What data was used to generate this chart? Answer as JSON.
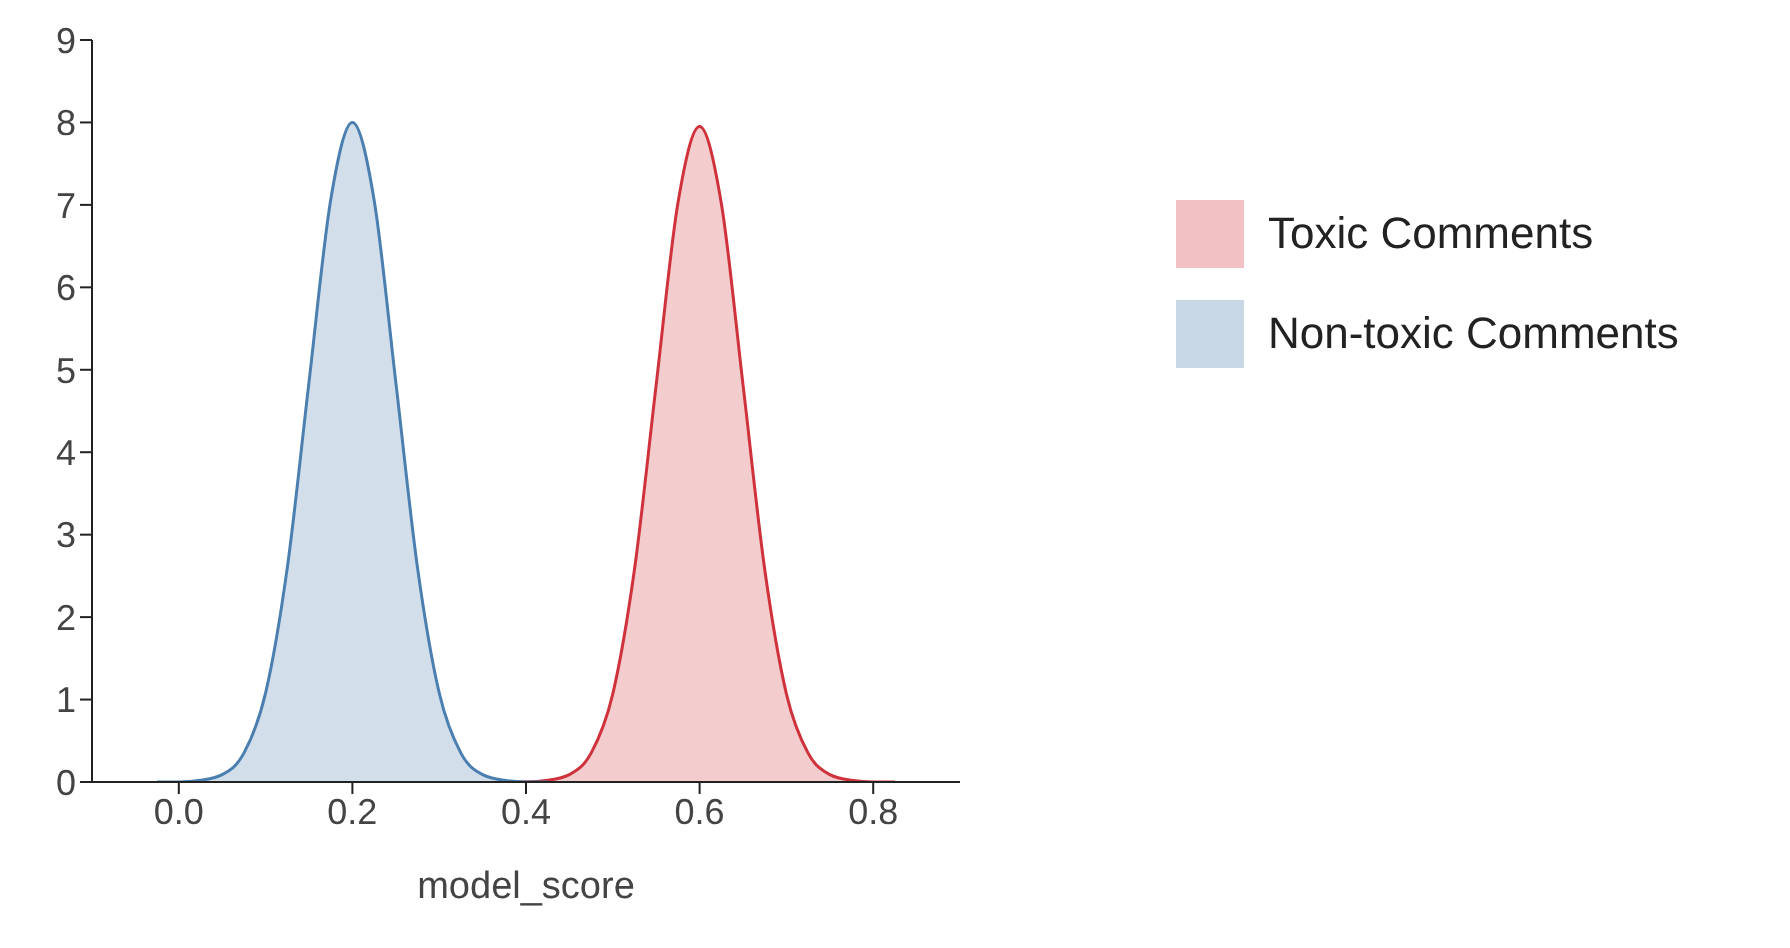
{
  "chart_data": {
    "type": "area",
    "xlabel": "model_score",
    "xlim": [
      -0.1,
      0.9
    ],
    "xticks": [
      {
        "value": 0,
        "label": "0.0"
      },
      {
        "value": 0.2,
        "label": "0.2"
      },
      {
        "value": 0.4,
        "label": "0.4"
      },
      {
        "value": 0.6,
        "label": "0.6"
      },
      {
        "value": 0.8,
        "label": "0.8"
      }
    ],
    "ylim": [
      0,
      9
    ],
    "yticks": [
      0,
      1,
      2,
      3,
      4,
      5,
      6,
      7,
      8,
      9
    ],
    "grid": false,
    "legend": "right",
    "series": [
      {
        "name": "Toxic Comments",
        "color": "#d0323c",
        "x": [
          0.375,
          0.4,
          0.425,
          0.45,
          0.475,
          0.5,
          0.525,
          0.55,
          0.575,
          0.6,
          0.625,
          0.65,
          0.675,
          0.7,
          0.725,
          0.75,
          0.775,
          0.8,
          0.825
        ],
        "values": [
          0,
          0,
          0.02,
          0.09,
          0.35,
          1.07,
          2.58,
          4.82,
          7.02,
          7.95,
          7.02,
          4.82,
          2.58,
          1.07,
          0.35,
          0.09,
          0.02,
          0,
          0
        ]
      },
      {
        "name": "Non-toxic Comments",
        "color": "#4a7fb0",
        "x": [
          -0.025,
          0,
          0.025,
          0.05,
          0.075,
          0.1,
          0.125,
          0.15,
          0.175,
          0.2,
          0.225,
          0.25,
          0.275,
          0.3,
          0.325,
          0.35,
          0.375,
          0.4,
          0.425
        ],
        "values": [
          0,
          0,
          0.02,
          0.09,
          0.35,
          1.08,
          2.6,
          4.85,
          7.06,
          8,
          7.06,
          4.85,
          2.6,
          1.08,
          0.35,
          0.09,
          0.02,
          0,
          0
        ]
      }
    ]
  }
}
